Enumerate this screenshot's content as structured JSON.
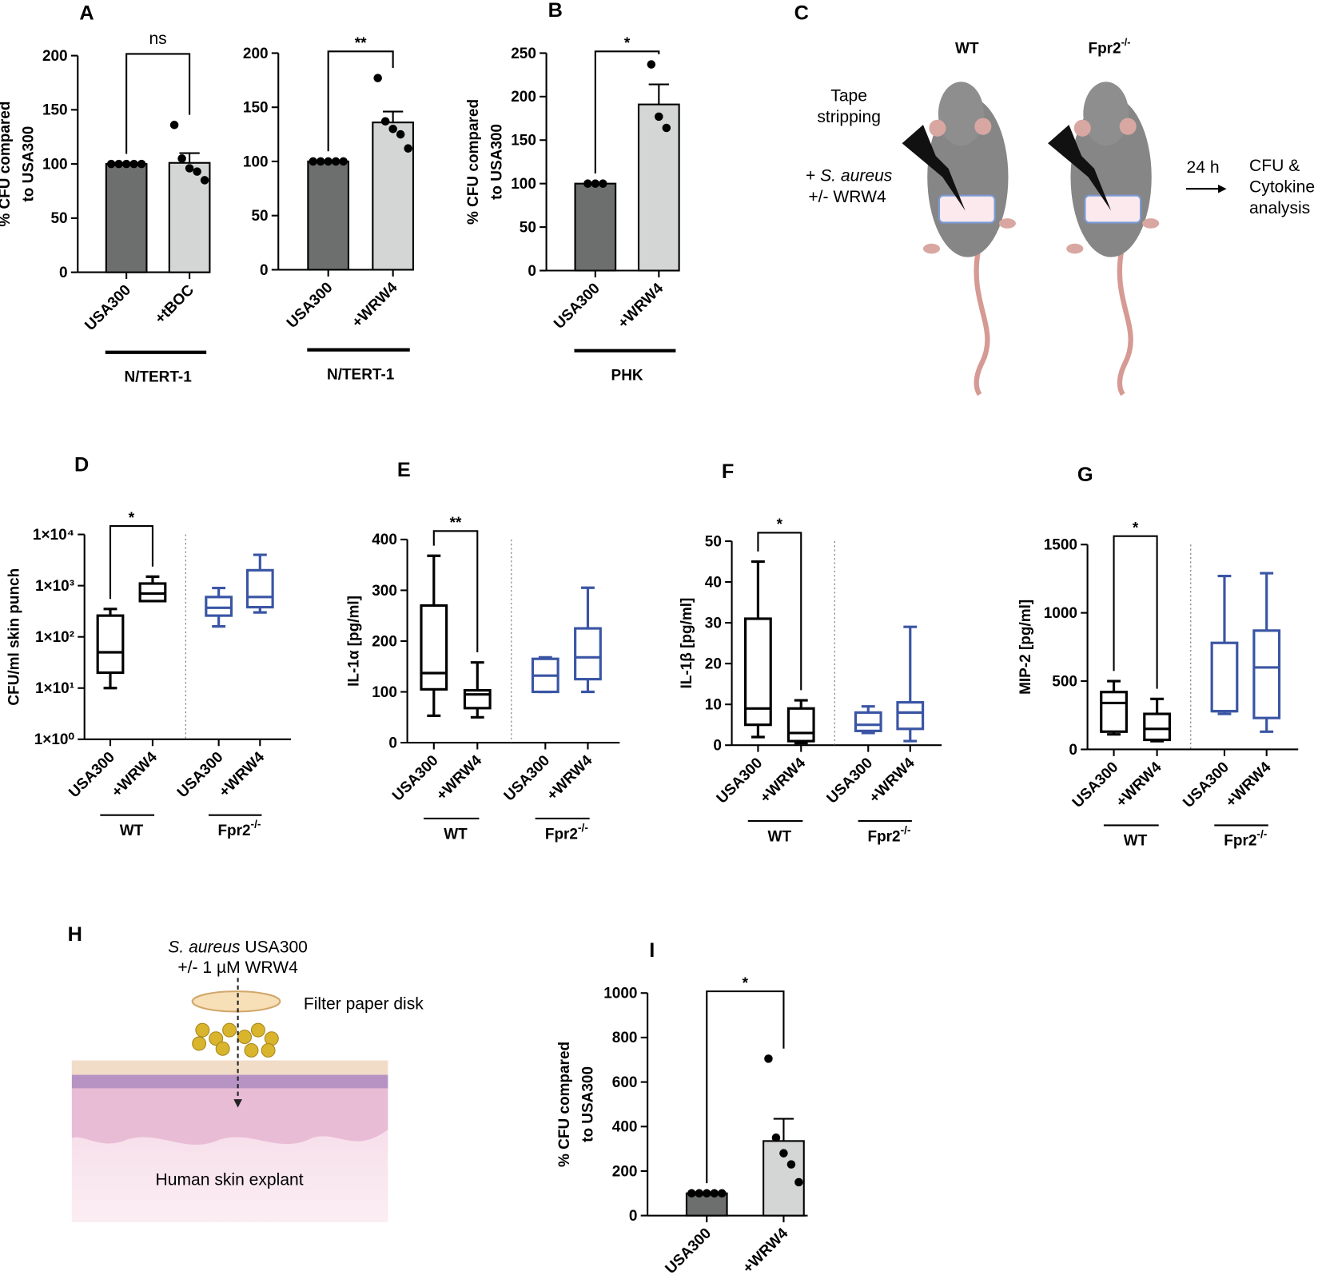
{
  "chart_data": [
    {
      "type": "bar",
      "panel": "A",
      "ylabel": [
        "% CFU compared",
        "to USA300"
      ],
      "categories": [
        "USA300",
        "+tBOC"
      ],
      "values": [
        100,
        101
      ],
      "errors": [
        0,
        9
      ],
      "points": [
        [
          100,
          100,
          100,
          100,
          100
        ],
        [
          136,
          105,
          96,
          93,
          85
        ]
      ],
      "colors": [
        "#6d6e6e",
        "#d3d6d5"
      ],
      "ylim": [
        0,
        200
      ],
      "yticks": [
        0,
        50,
        100,
        150,
        200
      ],
      "significance": "ns",
      "group_label": "N/TERT-1"
    },
    {
      "type": "bar",
      "categories": [
        "USA300",
        "+WRW4"
      ],
      "values": [
        100,
        136
      ],
      "errors": [
        0,
        10
      ],
      "points": [
        [
          100,
          100,
          100,
          100,
          100
        ],
        [
          177,
          137,
          130,
          125,
          112
        ]
      ],
      "colors": [
        "#6d6e6e",
        "#d3d6d5"
      ],
      "ylim": [
        0,
        200
      ],
      "yticks": [
        0,
        50,
        100,
        150,
        200
      ],
      "significance": "**",
      "group_label": "N/TERT-1"
    },
    {
      "type": "bar",
      "panel": "B",
      "ylabel": [
        "% CFU compared",
        "to USA300"
      ],
      "categories": [
        "USA300",
        "+WRW4"
      ],
      "values": [
        100,
        191
      ],
      "errors": [
        0,
        23
      ],
      "points": [
        [
          100,
          100,
          100
        ],
        [
          237,
          177,
          164
        ]
      ],
      "colors": [
        "#6d6e6e",
        "#d3d6d5"
      ],
      "ylim": [
        0,
        250
      ],
      "yticks": [
        0,
        50,
        100,
        150,
        200,
        250
      ],
      "significance": "*",
      "group_label": "PHK"
    },
    {
      "type": "box",
      "panel": "D",
      "ylabel": "CFU/ml skin punch",
      "log_scale": true,
      "categories": [
        "USA300",
        "+WRW4",
        "USA300",
        "+WRW4"
      ],
      "groups": [
        {
          "name": "WT",
          "color": "#000000"
        },
        {
          "name": "Fpr2",
          "sup": "-/-",
          "color": "#3a55a4"
        }
      ],
      "min": [
        10,
        500,
        160,
        300
      ],
      "q1": [
        20,
        500,
        260,
        380
      ],
      "median": [
        50,
        700,
        370,
        600
      ],
      "q3": [
        260,
        1100,
        600,
        2000
      ],
      "max": [
        350,
        1500,
        900,
        4000
      ],
      "ylim": [
        1,
        10000
      ],
      "yticks": [
        {
          "value": 1,
          "label": "1×10⁰"
        },
        {
          "value": 10,
          "label": "1×10¹"
        },
        {
          "value": 100,
          "label": "1×10²"
        },
        {
          "value": 1000,
          "label": "1×10³"
        },
        {
          "value": 10000,
          "label": "1×10⁴"
        }
      ],
      "significance": "*"
    },
    {
      "type": "box",
      "panel": "E",
      "ylabel": "IL-1α [pg/ml]",
      "categories": [
        "USA300",
        "+WRW4",
        "USA300",
        "+WRW4"
      ],
      "groups": [
        {
          "name": "WT",
          "color": "#000000"
        },
        {
          "name": "Fpr2",
          "sup": "-/-",
          "color": "#3a55a4"
        }
      ],
      "min": [
        53,
        50,
        100,
        100
      ],
      "q1": [
        105,
        68,
        100,
        125
      ],
      "median": [
        137,
        95,
        132,
        168
      ],
      "q3": [
        270,
        103,
        165,
        225
      ],
      "max": [
        368,
        158,
        168,
        305
      ],
      "ylim": [
        0,
        400
      ],
      "yticks": [
        0,
        100,
        200,
        300,
        400
      ],
      "significance": "**"
    },
    {
      "type": "box",
      "panel": "F",
      "ylabel": "IL-1β [pg/ml]",
      "categories": [
        "USA300",
        "+WRW4",
        "USA300",
        "+WRW4"
      ],
      "groups": [
        {
          "name": "WT",
          "color": "#000000"
        },
        {
          "name": "Fpr2",
          "sup": "-/-",
          "color": "#3a55a4"
        }
      ],
      "min": [
        2,
        0.5,
        3,
        1
      ],
      "q1": [
        5,
        1,
        3.5,
        4
      ],
      "median": [
        9,
        3,
        5,
        8
      ],
      "q3": [
        31,
        9,
        8,
        10.5
      ],
      "max": [
        45,
        11,
        9.5,
        29
      ],
      "ylim": [
        0,
        50
      ],
      "yticks": [
        0,
        10,
        20,
        30,
        40,
        50
      ],
      "significance": "*"
    },
    {
      "type": "box",
      "panel": "G",
      "ylabel": "MIP-2 [pg/ml]",
      "categories": [
        "USA300",
        "+WRW4",
        "USA300",
        "+WRW4"
      ],
      "groups": [
        {
          "name": "WT",
          "color": "#000000"
        },
        {
          "name": "Fpr2",
          "sup": "-/-",
          "color": "#3a55a4"
        }
      ],
      "min": [
        110,
        60,
        260,
        130
      ],
      "q1": [
        130,
        70,
        280,
        230
      ],
      "median": [
        340,
        150,
        280,
        600
      ],
      "q3": [
        420,
        260,
        780,
        870
      ],
      "max": [
        500,
        370,
        1270,
        1290
      ],
      "ylim": [
        0,
        1500
      ],
      "yticks": [
        0,
        500,
        1000,
        1500
      ],
      "significance": "*"
    },
    {
      "type": "bar",
      "panel": "I",
      "ylabel": [
        "% CFU compared",
        "to USA300"
      ],
      "categories": [
        "USA300",
        "+WRW4"
      ],
      "values": [
        100,
        335
      ],
      "errors": [
        0,
        100
      ],
      "points": [
        [
          100,
          100,
          100,
          100,
          100
        ],
        [
          705,
          350,
          280,
          230,
          150
        ]
      ],
      "colors": [
        "#6d6e6e",
        "#d3d6d5"
      ],
      "ylim": [
        0,
        1000
      ],
      "yticks": [
        0,
        200,
        400,
        600,
        800,
        1000
      ],
      "significance": "*"
    }
  ],
  "illustrations": {
    "mouse_model": {
      "panel": "C",
      "strains": [
        "WT",
        "Fpr2"
      ],
      "strain_sup": "-/-",
      "treatment": [
        "Tape",
        "stripping"
      ],
      "inoculum_prefix": "+",
      "inoculum_species": "S. aureus",
      "inhibitor": "+/- WRW4",
      "time": "24 h",
      "readout": [
        "CFU &",
        "Cytokine",
        "analysis"
      ]
    },
    "skin_explant": {
      "panel": "H",
      "species": "S. aureus",
      "strain": "USA300",
      "inhibitor": "+/- 1 µM WRW4",
      "disk": "Filter paper disk",
      "tissue": "Human skin explant"
    }
  }
}
